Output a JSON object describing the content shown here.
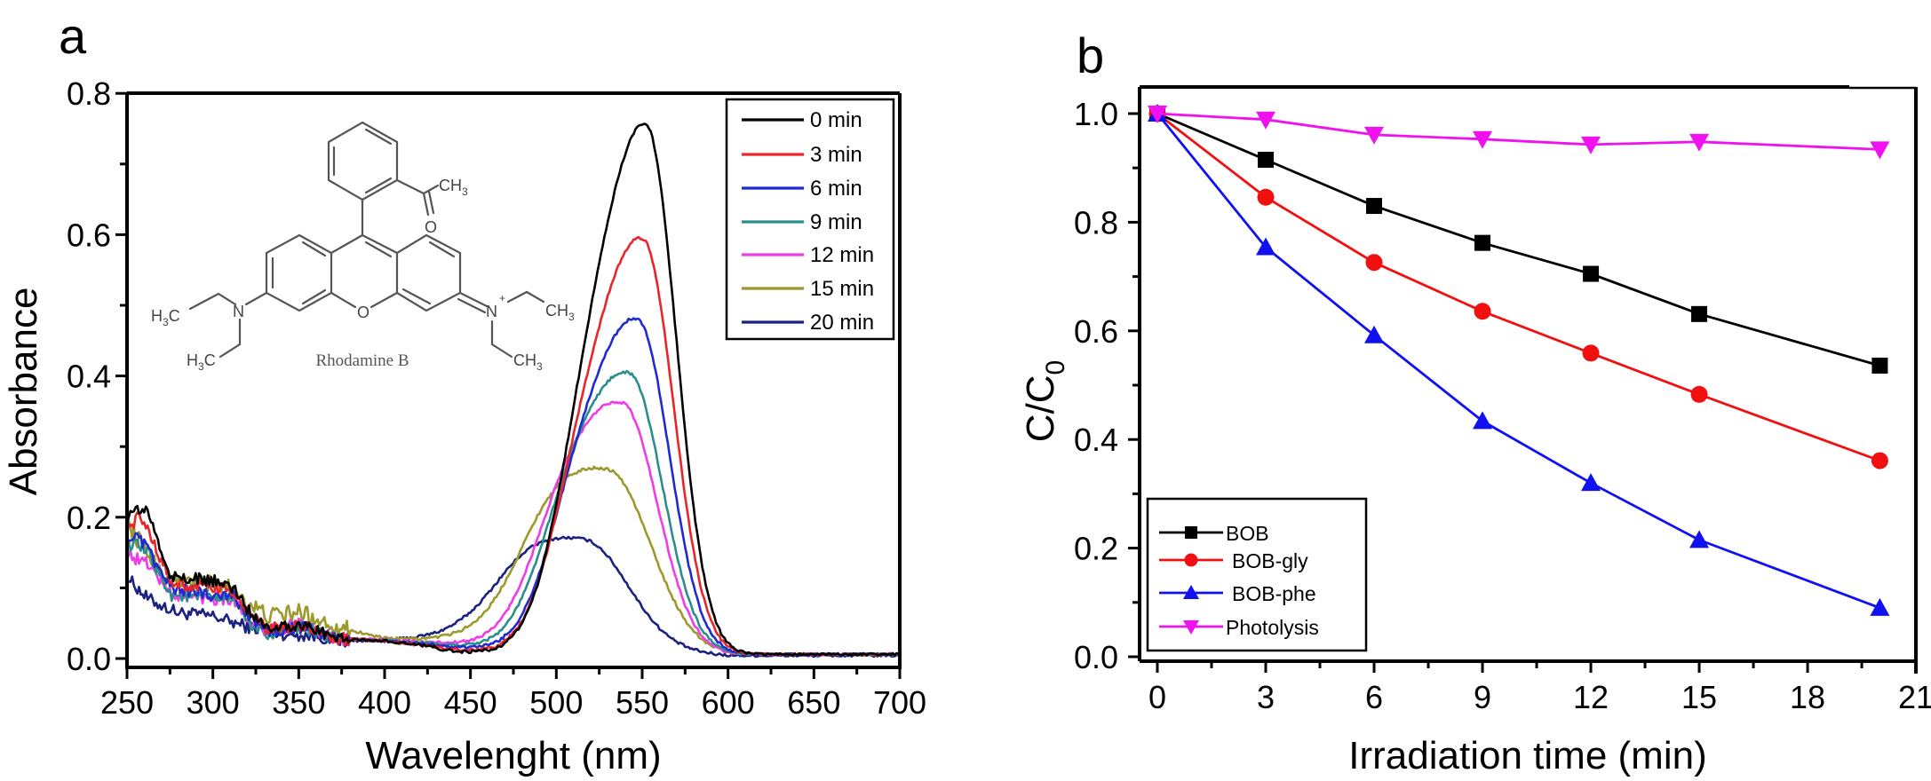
{
  "chart_data": [
    {
      "panel": "a",
      "type": "line",
      "title": "",
      "xlabel": "Wavelenght (nm)",
      "ylabel": "Absorbance",
      "xlim": [
        250,
        700
      ],
      "ylim": [
        0.0,
        0.8
      ],
      "xticks": [
        250,
        300,
        350,
        400,
        450,
        500,
        550,
        600,
        650,
        700
      ],
      "xtick_labels": [
        "250",
        "300",
        "350",
        "400",
        "450",
        "500",
        "550",
        "600",
        "650",
        "700"
      ],
      "yticks": [
        0.0,
        0.2,
        0.4,
        0.6,
        0.8
      ],
      "ytick_labels": [
        "0.0",
        "0.2",
        "0.4",
        "0.6",
        "0.8"
      ],
      "grid": false,
      "legend_position": "top-right",
      "inset_annotation": "Rhodamine B",
      "series": [
        {
          "name": "0 min",
          "color": "#000000",
          "peak_nm": 553,
          "peak_abs": 0.728,
          "width_nm": 17,
          "baseline": [
            [
              250,
              0.2
            ],
            [
              255,
              0.21
            ],
            [
              262,
              0.21
            ],
            [
              270,
              0.15
            ],
            [
              276,
              0.115
            ],
            [
              300,
              0.11
            ],
            [
              312,
              0.1
            ],
            [
              322,
              0.065
            ],
            [
              332,
              0.045
            ],
            [
              352,
              0.048
            ],
            [
              372,
              0.028
            ],
            [
              400,
              0.025
            ],
            [
              445,
              0.012
            ],
            [
              600,
              0.006
            ],
            [
              700,
              0.006
            ]
          ]
        },
        {
          "name": "3 min",
          "color": "#e8262a",
          "peak_nm": 551,
          "peak_abs": 0.571,
          "width_nm": 17.5,
          "baseline": [
            [
              250,
              0.18
            ],
            [
              256,
              0.2
            ],
            [
              262,
              0.185
            ],
            [
              270,
              0.14
            ],
            [
              276,
              0.105
            ],
            [
              300,
              0.1
            ],
            [
              312,
              0.095
            ],
            [
              322,
              0.06
            ],
            [
              332,
              0.042
            ],
            [
              352,
              0.046
            ],
            [
              372,
              0.028
            ],
            [
              400,
              0.025
            ],
            [
              445,
              0.013
            ],
            [
              600,
              0.006
            ],
            [
              700,
              0.006
            ]
          ]
        },
        {
          "name": "6 min",
          "color": "#1f2bd0",
          "peak_nm": 548,
          "peak_abs": 0.459,
          "width_nm": 18,
          "baseline": [
            [
              250,
              0.17
            ],
            [
              256,
              0.17
            ],
            [
              262,
              0.155
            ],
            [
              270,
              0.12
            ],
            [
              276,
              0.1
            ],
            [
              300,
              0.09
            ],
            [
              312,
              0.09
            ],
            [
              322,
              0.055
            ],
            [
              332,
              0.04
            ],
            [
              352,
              0.044
            ],
            [
              372,
              0.027
            ],
            [
              400,
              0.025
            ],
            [
              445,
              0.016
            ],
            [
              600,
              0.006
            ],
            [
              700,
              0.006
            ]
          ]
        },
        {
          "name": "9 min",
          "color": "#2a8f8c",
          "peak_nm": 543,
          "peak_abs": 0.384,
          "width_nm": 19,
          "baseline": [
            [
              250,
              0.16
            ],
            [
              256,
              0.16
            ],
            [
              262,
              0.15
            ],
            [
              270,
              0.115
            ],
            [
              276,
              0.09
            ],
            [
              300,
              0.085
            ],
            [
              312,
              0.085
            ],
            [
              322,
              0.05
            ],
            [
              332,
              0.035
            ],
            [
              352,
              0.045
            ],
            [
              372,
              0.027
            ],
            [
              400,
              0.025
            ],
            [
              445,
              0.018
            ],
            [
              600,
              0.006
            ],
            [
              700,
              0.006
            ]
          ]
        },
        {
          "name": "12 min",
          "color": "#f03ce8",
          "peak_nm": 539,
          "peak_abs": 0.342,
          "width_nm": 20,
          "baseline": [
            [
              250,
              0.15
            ],
            [
              256,
              0.14
            ],
            [
              262,
              0.135
            ],
            [
              270,
              0.11
            ],
            [
              276,
              0.09
            ],
            [
              300,
              0.085
            ],
            [
              312,
              0.085
            ],
            [
              322,
              0.05
            ],
            [
              332,
              0.038
            ],
            [
              352,
              0.05
            ],
            [
              372,
              0.028
            ],
            [
              400,
              0.026
            ],
            [
              445,
              0.02
            ],
            [
              600,
              0.006
            ],
            [
              700,
              0.006
            ]
          ]
        },
        {
          "name": "15 min",
          "color": "#9c9a2c",
          "peak_nm": 531,
          "peak_abs": 0.248,
          "width_nm": 24,
          "baseline": [
            [
              250,
              0.19
            ],
            [
              256,
              0.17
            ],
            [
              262,
              0.15
            ],
            [
              270,
              0.12
            ],
            [
              276,
              0.11
            ],
            [
              300,
              0.105
            ],
            [
              312,
              0.1
            ],
            [
              322,
              0.075
            ],
            [
              332,
              0.06
            ],
            [
              352,
              0.065
            ],
            [
              372,
              0.045
            ],
            [
              400,
              0.028
            ],
            [
              445,
              0.022
            ],
            [
              600,
              0.006
            ],
            [
              700,
              0.006
            ]
          ]
        },
        {
          "name": "20 min",
          "color": "#1c2280",
          "peak_nm": 517,
          "peak_abs": 0.15,
          "width_nm": 25,
          "baseline": [
            [
              250,
              0.115
            ],
            [
              256,
              0.1
            ],
            [
              262,
              0.085
            ],
            [
              270,
              0.075
            ],
            [
              280,
              0.065
            ],
            [
              300,
              0.06
            ],
            [
              320,
              0.045
            ],
            [
              340,
              0.035
            ],
            [
              360,
              0.032
            ],
            [
              372,
              0.025
            ],
            [
              400,
              0.025
            ],
            [
              445,
              0.024
            ],
            [
              600,
              0.004
            ],
            [
              700,
              0.004
            ]
          ]
        }
      ]
    },
    {
      "panel": "b",
      "type": "line",
      "title": "",
      "xlabel": "Irradiation time (min)",
      "ylabel": "C/C",
      "ylabel_sub": "0",
      "xlim": [
        -0.3,
        21
      ],
      "ylim": [
        -0.03,
        1.05
      ],
      "xticks": [
        0,
        3,
        6,
        9,
        12,
        15,
        18,
        21
      ],
      "xtick_labels": [
        "0",
        "3",
        "6",
        "9",
        "12",
        "15",
        "18",
        "21"
      ],
      "yticks": [
        0.0,
        0.2,
        0.4,
        0.6,
        0.8,
        1.0
      ],
      "ytick_labels": [
        "0.0",
        "0.2",
        "0.4",
        "0.6",
        "0.8",
        "1.0"
      ],
      "grid": false,
      "legend_position": "bottom-left",
      "x": [
        0,
        3,
        6,
        9,
        12,
        15,
        20
      ],
      "series": [
        {
          "name": "BOB",
          "color": "#000000",
          "marker": "square",
          "values": [
            1.0,
            0.915,
            0.83,
            0.762,
            0.705,
            0.631,
            0.536
          ]
        },
        {
          "name": "BOB-gly",
          "color": "#f01010",
          "marker": "circle",
          "values": [
            1.0,
            0.846,
            0.726,
            0.636,
            0.559,
            0.483,
            0.361
          ]
        },
        {
          "name": "BOB-phe",
          "color": "#1010f0",
          "marker": "triangle-up",
          "values": [
            1.0,
            0.754,
            0.592,
            0.434,
            0.32,
            0.215,
            0.09
          ]
        },
        {
          "name": "Photolysis",
          "color": "#f010f0",
          "marker": "triangle-down",
          "values": [
            1.0,
            0.989,
            0.961,
            0.953,
            0.943,
            0.948,
            0.934
          ]
        }
      ]
    }
  ],
  "panels": {
    "a": {
      "letter": "a"
    },
    "b": {
      "letter": "b"
    }
  },
  "molecule": {
    "name": "Rhodamine B",
    "labels": {
      "ch3": "CH",
      "sub3": "3",
      "h3c_h": "H",
      "h3c_c": "C",
      "o": "O",
      "n": "N",
      "plus": "+"
    }
  }
}
